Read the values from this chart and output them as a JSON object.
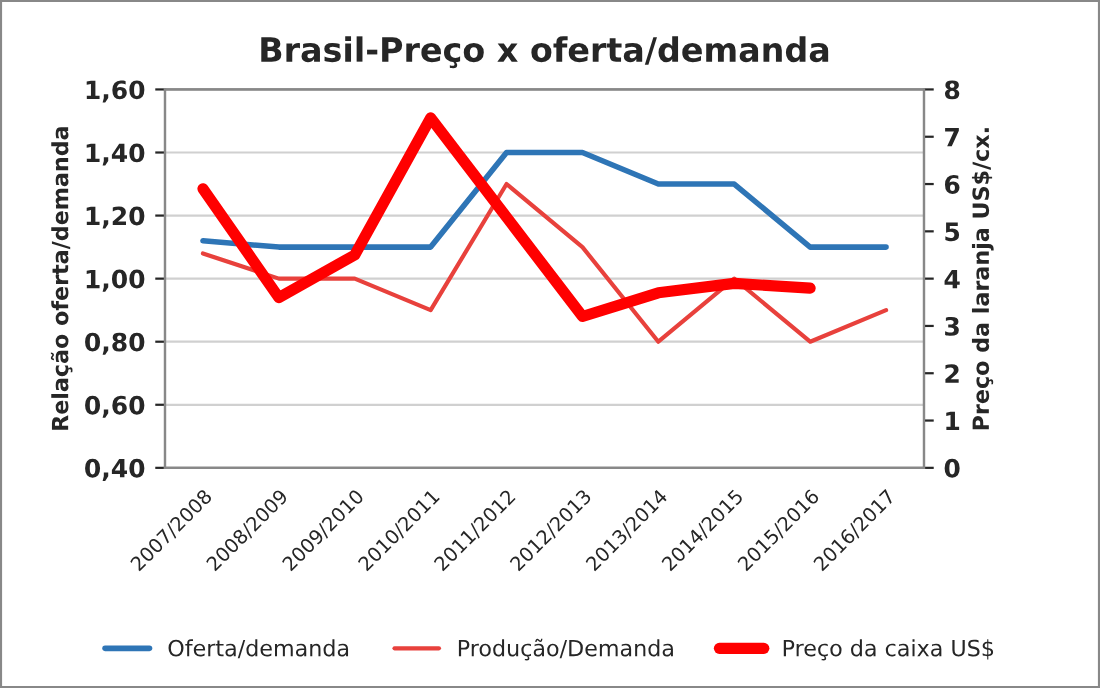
{
  "chart_data": {
    "type": "line",
    "title": "Brasil-Preço x oferta/demanda",
    "ylabel": "Relação oferta/demanda",
    "y2label": "Preço da laranja US$/cx.",
    "categories": [
      "2007/2008",
      "2008/2009",
      "2009/2010",
      "2010/2011",
      "2011/2012",
      "2012/2013",
      "2013/2014",
      "2014/2015",
      "2015/2016",
      "2016/2017"
    ],
    "series": [
      {
        "name": "Oferta/demanda",
        "color": "#2e75b6",
        "values": [
          1.12,
          1.1,
          1.1,
          1.1,
          1.4,
          1.4,
          1.3,
          1.3,
          1.1,
          1.1
        ]
      },
      {
        "name": "Produção/Demanda",
        "color": "#e8413c",
        "values": [
          1.08,
          1.0,
          1.0,
          0.9,
          1.3,
          1.1,
          0.8,
          1.0,
          0.8,
          0.9
        ]
      },
      {
        "name": "Preço da caixa US$",
        "color": "#ff0000",
        "axis": "y2",
        "values": [
          5.9,
          3.6,
          4.5,
          7.4,
          5.3,
          3.2,
          3.7,
          3.9,
          3.8,
          null
        ]
      }
    ],
    "ylim": [
      0.4,
      1.6
    ],
    "yticks": [
      {
        "value": 0.4,
        "label": "0,40"
      },
      {
        "value": 0.6,
        "label": "0,60"
      },
      {
        "value": 0.8,
        "label": "0,80"
      },
      {
        "value": 1.0,
        "label": "1,00"
      },
      {
        "value": 1.2,
        "label": "1,20"
      },
      {
        "value": 1.4,
        "label": "1,40"
      },
      {
        "value": 1.6,
        "label": "1,60"
      }
    ],
    "y2lim": [
      0,
      8
    ],
    "y2ticks": [
      0,
      1,
      2,
      3,
      4,
      5,
      6,
      7,
      8
    ],
    "grid": "y",
    "legend": "bottom",
    "marker": "none",
    "line_style": "solid"
  }
}
